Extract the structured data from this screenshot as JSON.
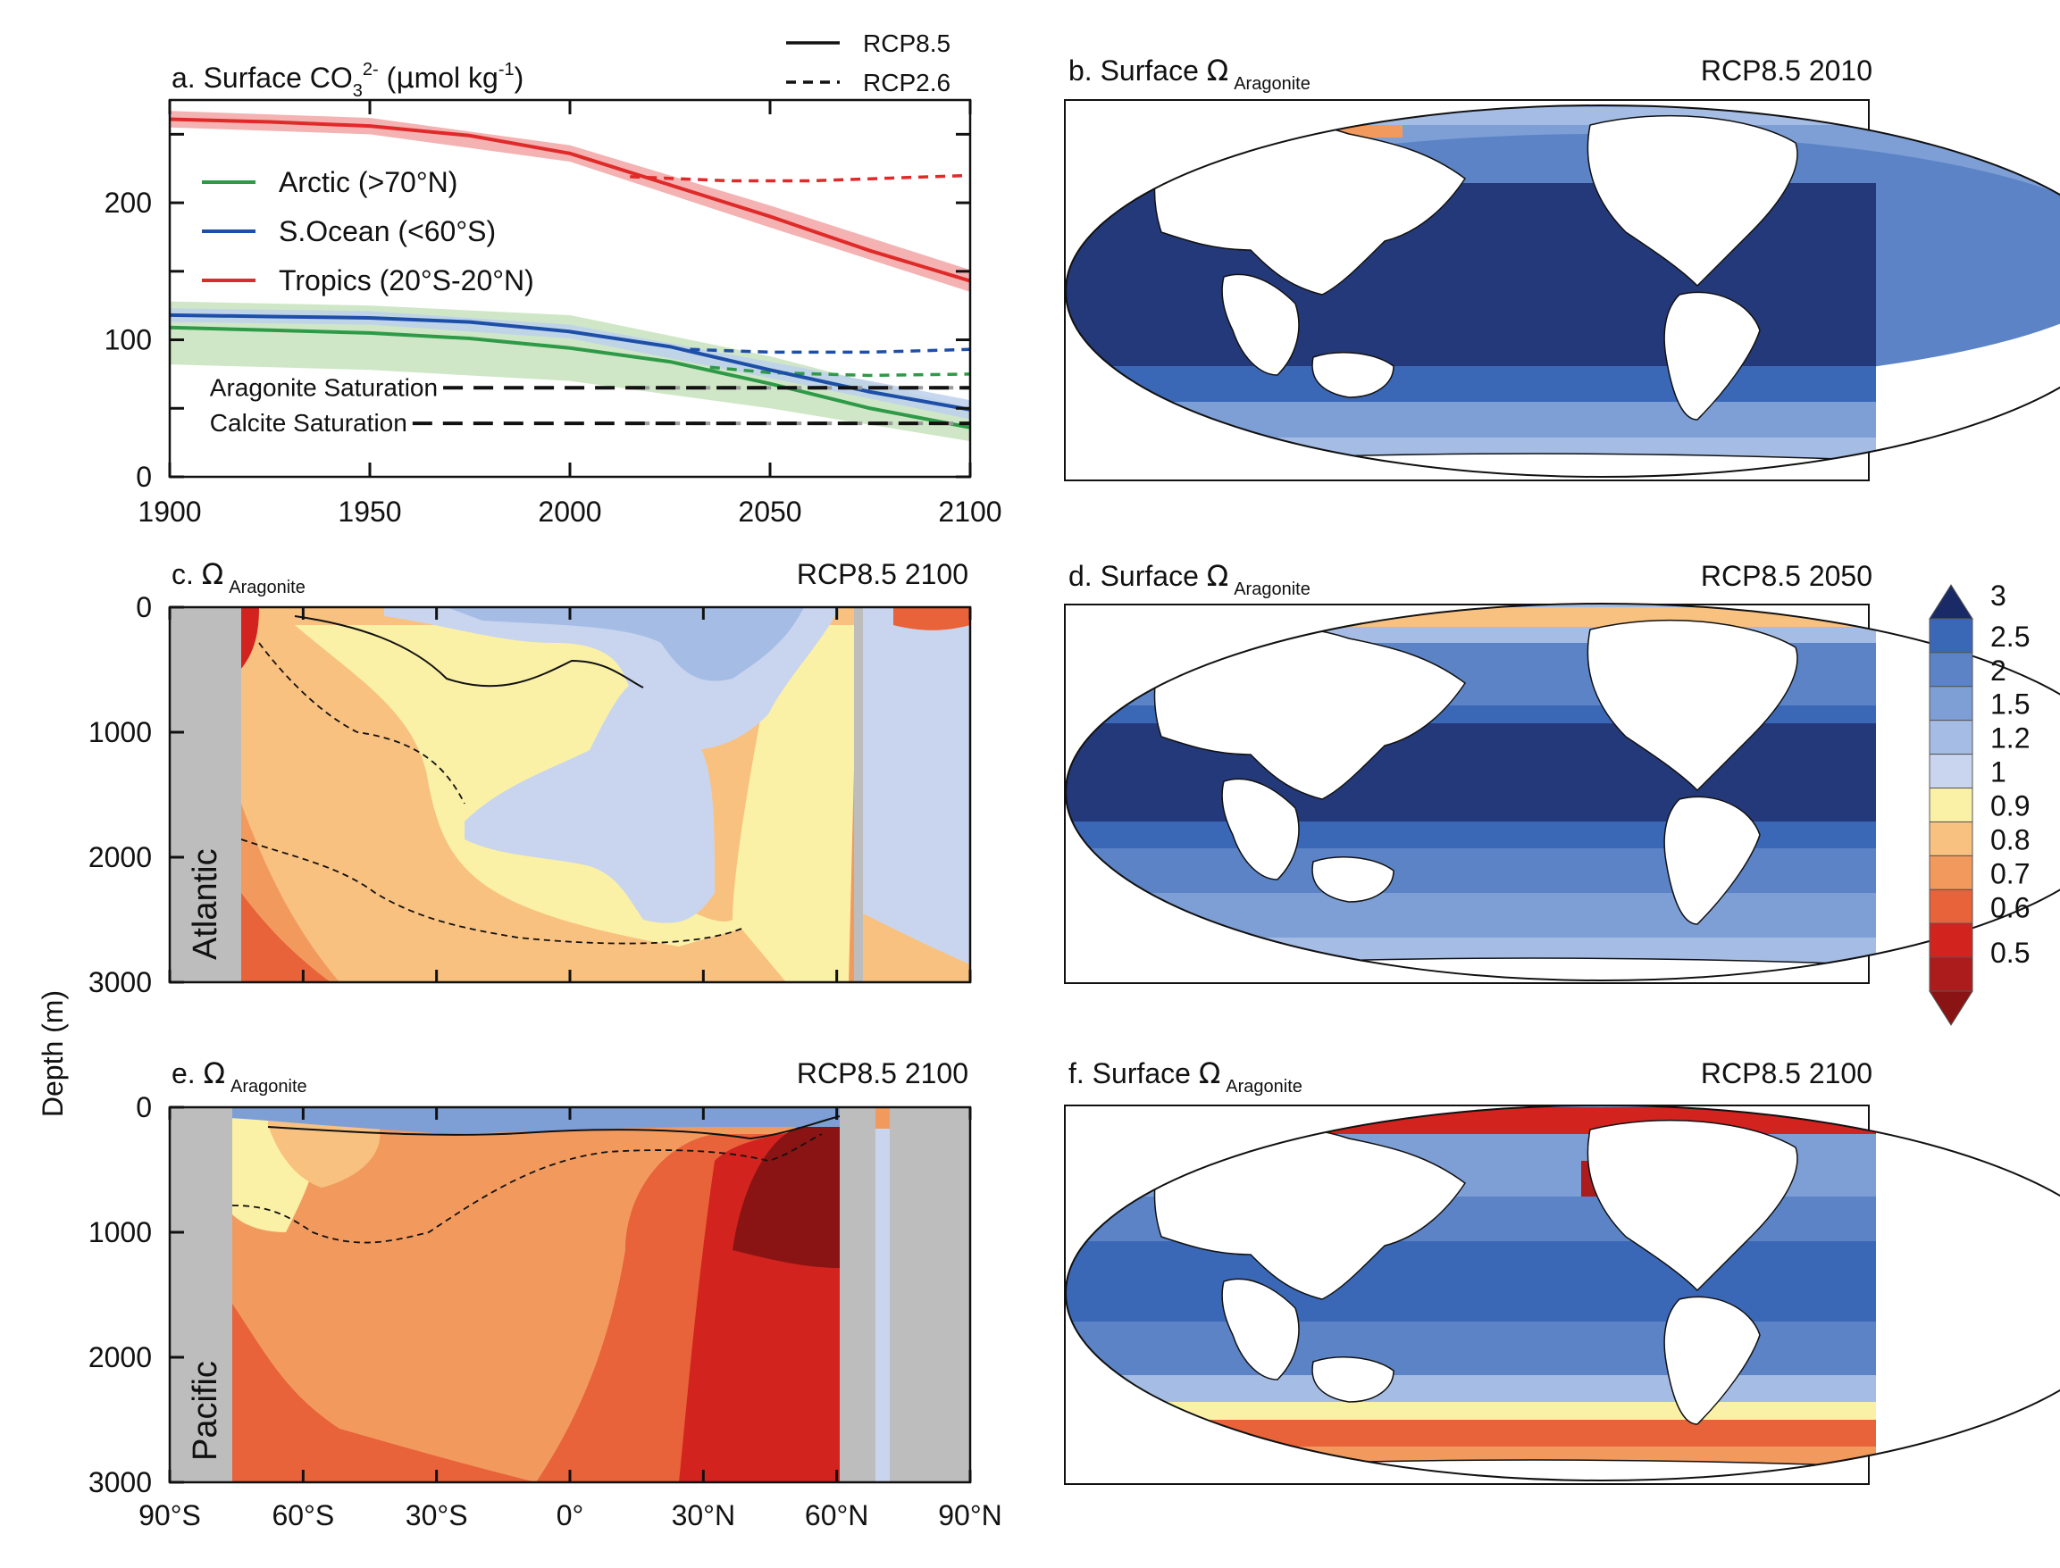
{
  "chart_data": [
    {
      "type": "line",
      "panel": "a",
      "title": {
        "prefix": "a. Surface CO",
        "sub": "3",
        "sup": "2-",
        "unit_open": " (",
        "mu": "μ",
        "unit_main": "mol kg",
        "unit_sup": "-1",
        "unit_close": ")"
      },
      "xlim": [
        1900,
        2100
      ],
      "ylim": [
        0,
        275
      ],
      "x_ticks": [
        1900,
        1950,
        2000,
        2050,
        2100
      ],
      "x_tick_labels": [
        "1900",
        "1950",
        "2000",
        "2050",
        "2100"
      ],
      "y_ticks": [
        0,
        100,
        200
      ],
      "y_tick_labels": [
        "0",
        "100",
        "200"
      ],
      "style_legend": [
        {
          "label": "RCP8.5",
          "dash": "solid"
        },
        {
          "label": "RCP2.6",
          "dash": "dashed"
        }
      ],
      "series": [
        {
          "name": "Arctic (>70°N)",
          "color": "#2e9a47",
          "band_color": "#c8e3bd",
          "rcp85": {
            "x": [
              1900,
              1925,
              1950,
              1975,
              2000,
              2025,
              2050,
              2075,
              2100
            ],
            "y": [
              109,
              107,
              105,
              101,
              94,
              84,
              68,
              50,
              36
            ]
          },
          "band": {
            "x": [
              1900,
              1950,
              2000,
              2050,
              2100
            ],
            "lo": [
              82,
              78,
              70,
              50,
              26
            ],
            "hi": [
              128,
              125,
              118,
              88,
              50
            ]
          },
          "rcp26": {
            "x": [
              2035,
              2050,
              2075,
              2100
            ],
            "y": [
              80,
              76,
              74,
              75
            ]
          }
        },
        {
          "name": "S.Ocean (<60°S)",
          "color": "#1d4fa8",
          "band_color": "#bcd0ec",
          "rcp85": {
            "x": [
              1900,
              1925,
              1950,
              1975,
              2000,
              2025,
              2050,
              2075,
              2100
            ],
            "y": [
              118,
              117,
              116,
              113,
              106,
              95,
              78,
              62,
              49
            ]
          },
          "band": {
            "x": [
              1900,
              1950,
              2000,
              2050,
              2100
            ],
            "lo": [
              113,
              111,
              101,
              72,
              42
            ],
            "hi": [
              123,
              121,
              111,
              84,
              56
            ]
          },
          "rcp26": {
            "x": [
              2030,
              2050,
              2075,
              2100
            ],
            "y": [
              93,
              91,
              91,
              93
            ]
          }
        },
        {
          "name": "Tropics (20°S-20°N)",
          "color": "#e02a2a",
          "band_color": "#f2a4a4",
          "rcp85": {
            "x": [
              1900,
              1925,
              1950,
              1975,
              2000,
              2025,
              2050,
              2075,
              2100
            ],
            "y": [
              261,
              259,
              256,
              249,
              236,
              213,
              190,
              165,
              143
            ]
          },
          "band": {
            "x": [
              1900,
              1950,
              2000,
              2050,
              2100
            ],
            "lo": [
              255,
              250,
              230,
              182,
              135
            ],
            "hi": [
              267,
              262,
              242,
              198,
              151
            ]
          },
          "rcp26": {
            "x": [
              2015,
              2040,
              2060,
              2080,
              2100
            ],
            "y": [
              219,
              216,
              216,
              218,
              220
            ]
          }
        }
      ],
      "reference_lines": [
        {
          "label": "Aragonite Saturation",
          "y": 65
        },
        {
          "label": "Calcite Saturation",
          "y": 39
        }
      ]
    },
    {
      "type": "heatmap",
      "panel": "c",
      "title_prefix": "c.  ",
      "omega": "Ω",
      "title_sub": "Aragonite",
      "right_label": "RCP8.5  2100",
      "basin_label": "Atlantic",
      "ylim": [
        3000,
        0
      ],
      "y_ticks": [
        0,
        1000,
        2000,
        3000
      ],
      "y_tick_labels": [
        "0",
        "1000",
        "2000",
        "3000"
      ]
    },
    {
      "type": "heatmap",
      "panel": "e",
      "title_prefix": "e.  ",
      "omega": "Ω",
      "title_sub": "Aragonite",
      "right_label": "RCP8.5  2100",
      "basin_label": "Pacific",
      "ylabel": "Depth (m)",
      "ylim": [
        3000,
        0
      ],
      "y_ticks": [
        0,
        1000,
        2000,
        3000
      ],
      "y_tick_labels": [
        "0",
        "1000",
        "2000",
        "3000"
      ],
      "x_tick_labels": [
        "90°S",
        "60°S",
        "30°S",
        "0°",
        "30°N",
        "60°N",
        "90°N"
      ]
    },
    {
      "type": "heatmap",
      "panel": "b",
      "title_prefix": "b. Surface ",
      "omega": "Ω",
      "title_sub": "Aragonite",
      "right_label": "RCP8.5  2010"
    },
    {
      "type": "heatmap",
      "panel": "d",
      "title_prefix": "d. Surface ",
      "omega": "Ω",
      "title_sub": "Aragonite",
      "right_label": "RCP8.5  2050"
    },
    {
      "type": "heatmap",
      "panel": "f",
      "title_prefix": "f. Surface ",
      "omega": "Ω",
      "title_sub": "Aragonite",
      "right_label": "RCP8.5  2100"
    }
  ],
  "colorbar": {
    "labels": [
      "3",
      "2.5",
      "2",
      "1.5",
      "1.2",
      "1",
      "0.9",
      "0.8",
      "0.7",
      "0.6",
      "0.5"
    ],
    "colors": [
      "#1f4a9e",
      "#3a68b6",
      "#5b83c6",
      "#7e9fd6",
      "#a5bde5",
      "#c9d5ee",
      "#fbf1a6",
      "#f8c180",
      "#f29a5e",
      "#e8623a",
      "#d2231f",
      "#ad1c1c",
      "#8a1414"
    ],
    "top_arrow_color": "#1a2a66",
    "bottom_arrow_color": "#8a1414"
  }
}
